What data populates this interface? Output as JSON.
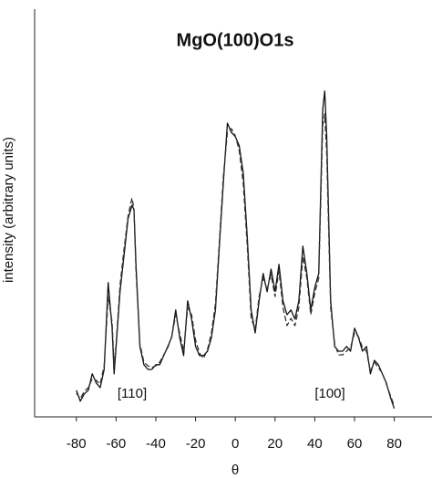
{
  "chart_data": {
    "type": "line",
    "title": "MgO(100)O1s",
    "x_label": "θ",
    "y_label": "intensity (arbitrary units)",
    "annotations": [
      "[110]",
      "[100]"
    ],
    "x": [
      -80,
      -78,
      -76,
      -74,
      -72,
      -70,
      -68,
      -66,
      -64,
      -62,
      -61,
      -60,
      -58,
      -56,
      -54,
      -52,
      -51,
      -50,
      -48,
      -46,
      -44,
      -42,
      -40,
      -38,
      -36,
      -34,
      -32,
      -30,
      -28,
      -26,
      -24,
      -22,
      -20,
      -18,
      -16,
      -14,
      -12,
      -10,
      -8,
      -6,
      -4,
      -2,
      0,
      2,
      4,
      6,
      8,
      10,
      12,
      14,
      16,
      18,
      20,
      22,
      24,
      26,
      28,
      30,
      32,
      34,
      36,
      38,
      40,
      42,
      44,
      45,
      46,
      48,
      50,
      52,
      54,
      56,
      58,
      60,
      62,
      64,
      66,
      68,
      70,
      72,
      74,
      76,
      78,
      80
    ],
    "series": [
      {
        "color": "#111111",
        "dash": false,
        "values": [
          7.3,
          4.3,
          6.3,
          7.3,
          11.8,
          9.3,
          8,
          13,
          36.8,
          24.3,
          11.8,
          19.3,
          34.3,
          44.3,
          54.3,
          58,
          56.8,
          41.8,
          19.3,
          14.3,
          13,
          13,
          14.3,
          14.3,
          16.8,
          19.3,
          21.8,
          29.3,
          21.8,
          16.8,
          31.8,
          26.8,
          19.3,
          16.8,
          16.8,
          18,
          21.8,
          29.3,
          46.8,
          64.3,
          80.5,
          78,
          76.8,
          74.3,
          66.8,
          49.3,
          29.3,
          23,
          31.8,
          39.3,
          34.3,
          40.5,
          34.3,
          41.8,
          31.8,
          28,
          29.3,
          26.8,
          31.8,
          46.8,
          39.3,
          29.3,
          35.5,
          39.3,
          84.3,
          89.3,
          76.8,
          31.8,
          19.3,
          18,
          18,
          19.3,
          18,
          24.3,
          21.8,
          18,
          19.3,
          11.8,
          15.5,
          14.3,
          11.8,
          9.3,
          5.5,
          2.3
        ]
      },
      {
        "color": "#333333",
        "dash": true,
        "values": [
          6.5,
          5,
          7,
          8,
          10.5,
          10,
          9,
          14,
          33,
          26,
          14,
          20,
          36,
          46,
          55,
          60,
          57,
          40,
          20,
          15,
          14,
          13.5,
          14,
          15,
          17,
          19,
          22,
          28,
          23,
          18,
          30,
          28,
          21,
          17.5,
          16,
          18.5,
          23,
          31,
          48,
          66,
          78,
          79,
          77,
          73,
          64,
          47,
          27,
          24,
          33,
          38,
          35,
          39,
          33,
          40,
          30,
          25,
          27,
          25,
          30,
          44,
          38,
          28,
          34,
          38,
          80,
          83,
          72,
          30,
          20,
          17,
          17,
          18,
          19,
          23,
          22,
          19,
          18,
          12.5,
          15,
          13.5,
          12,
          9,
          6,
          3
        ]
      }
    ],
    "xlim": [
      -101,
      99
    ],
    "xticks": [
      -80,
      -60,
      -40,
      -20,
      0,
      20,
      40,
      60,
      80
    ],
    "ylim": [
      0,
      100
    ]
  }
}
